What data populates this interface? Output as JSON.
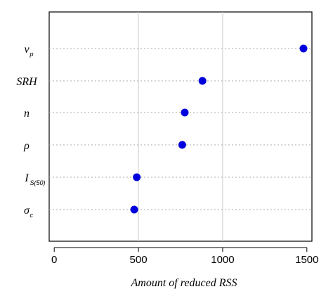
{
  "chart_data": {
    "type": "scatter",
    "title": "",
    "xlabel": "Amount of reduced RSS",
    "ylabel": "",
    "xlim": [
      -30,
      1530
    ],
    "xticks": [
      0,
      500,
      1000,
      1500
    ],
    "grid": true,
    "categories": [
      {
        "main": "v",
        "sub": "p"
      },
      {
        "main": "SRH",
        "sub": ""
      },
      {
        "main": "n",
        "sub": ""
      },
      {
        "main": "ρ",
        "sub": ""
      },
      {
        "main": "I",
        "sub": "S(50)"
      },
      {
        "main": "σ",
        "sub": "c"
      }
    ],
    "values": [
      1480,
      880,
      775,
      760,
      490,
      475
    ],
    "marker_color": "#0000dd"
  }
}
